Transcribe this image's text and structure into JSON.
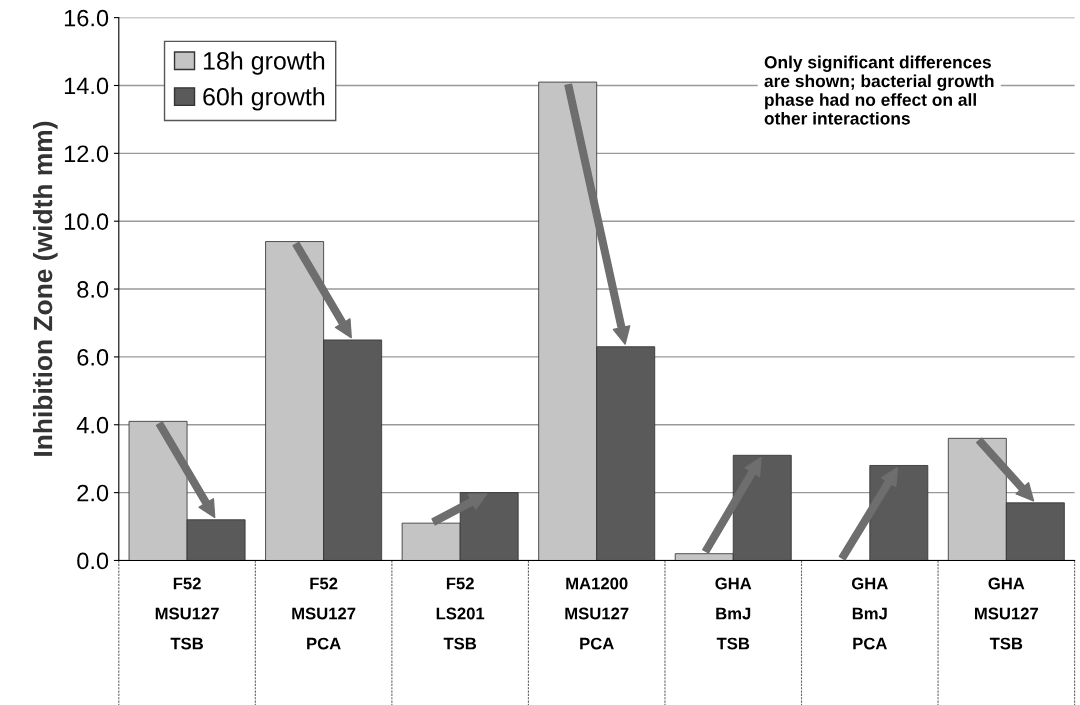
{
  "chart_data": {
    "type": "bar",
    "ylabel": "Inhibition Zone (width mm)",
    "categories": [
      "F52\nMSU127\nTSB",
      "F52\nMSU127\nPCA",
      "F52\nLS201\nTSB",
      "MA1200\nMSU127\nPCA",
      "GHA\nBmJ\nTSB",
      "GHA\nBmJ\nPCA",
      "GHA\nMSU127\nTSB"
    ],
    "series": [
      {
        "name": "18h growth",
        "color": "#c4c4c4",
        "values": [
          4.1,
          9.4,
          1.1,
          14.1,
          0.2,
          0.0,
          3.6
        ]
      },
      {
        "name": "60h growth",
        "color": "#5a5a5a",
        "values": [
          1.2,
          6.5,
          2.0,
          6.3,
          3.1,
          2.8,
          1.7
        ]
      }
    ],
    "ylim": [
      0,
      16
    ],
    "yticks": [
      {
        "value": 0,
        "label": "0.0"
      },
      {
        "value": 2,
        "label": "2.0"
      },
      {
        "value": 4,
        "label": "4.0"
      },
      {
        "value": 6,
        "label": "6.0"
      },
      {
        "value": 8,
        "label": "8.0"
      },
      {
        "value": 10,
        "label": "10.0"
      },
      {
        "value": 12,
        "label": "12.0"
      },
      {
        "value": 14,
        "label": "14.0"
      },
      {
        "value": 16,
        "label": "16.0"
      }
    ],
    "grid": "y",
    "legend": "top left",
    "annotations": [
      "Only significant differences\nare shown; bacterial growth\nphase had no effect on all\nother interactions"
    ]
  }
}
